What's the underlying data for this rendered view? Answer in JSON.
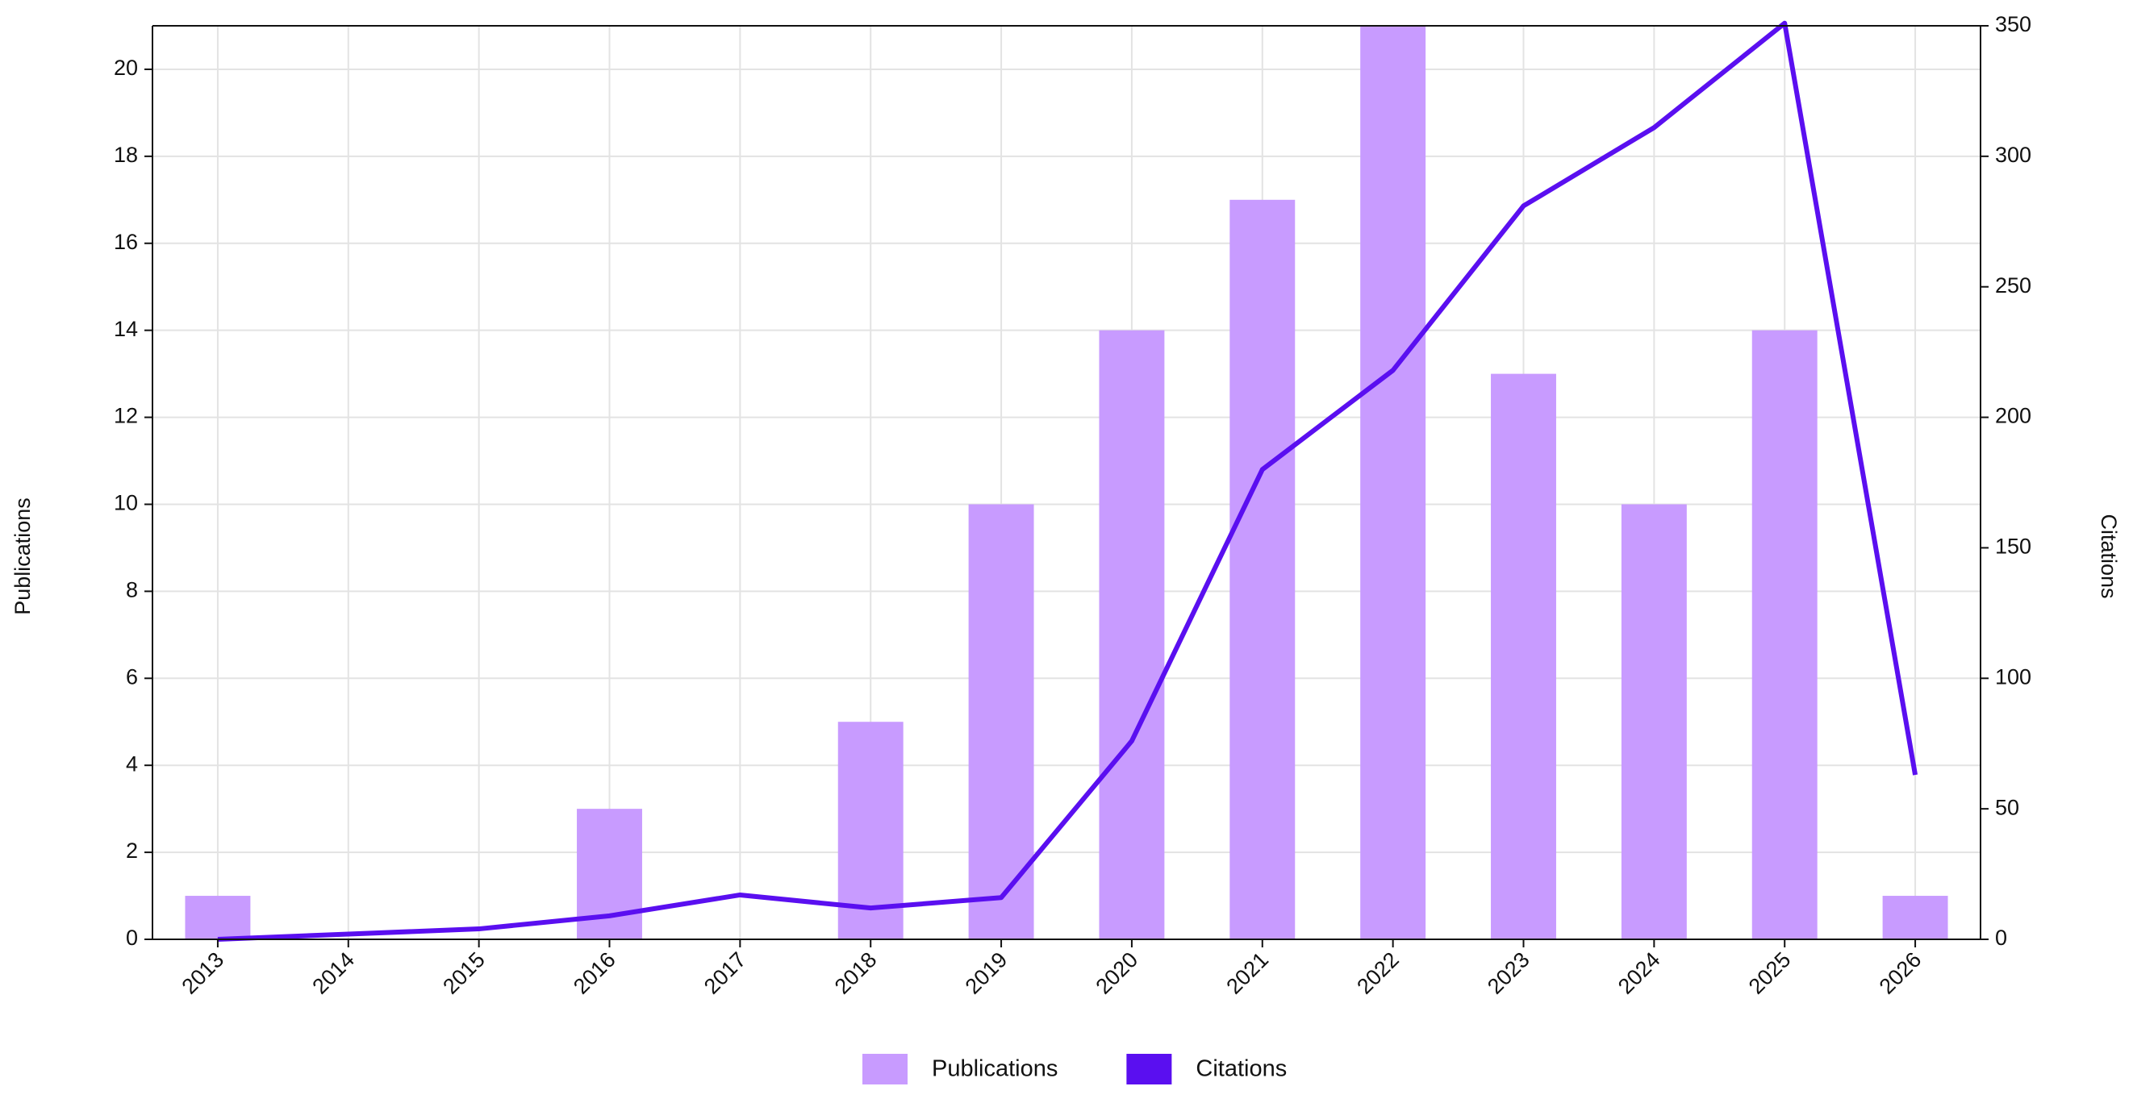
{
  "chart_data": {
    "type": "bar",
    "categories": [
      "2013",
      "2014",
      "2015",
      "2016",
      "2017",
      "2018",
      "2019",
      "2020",
      "2021",
      "2022",
      "2023",
      "2024",
      "2025",
      "2026"
    ],
    "series": [
      {
        "name": "Publications",
        "type": "bar",
        "color": "#c89bff",
        "values": [
          1,
          0,
          0,
          3,
          0,
          5,
          10,
          14,
          17,
          21,
          13,
          10,
          14,
          1
        ]
      },
      {
        "name": "Citations",
        "type": "line",
        "axis": "y2",
        "color": "#5a0ff0",
        "values": [
          0,
          2,
          4,
          9,
          17,
          12,
          16,
          76,
          180,
          218,
          281,
          311,
          351,
          63
        ]
      }
    ],
    "ylabel": "Publications",
    "y2label": "Citations",
    "ylim": [
      0,
      21
    ],
    "yticks": [
      0,
      2,
      4,
      6,
      8,
      10,
      12,
      14,
      16,
      18,
      20
    ],
    "y2lim": [
      0,
      350
    ],
    "y2ticks": [
      0,
      50,
      100,
      150,
      200,
      250,
      300,
      350
    ],
    "grid": true,
    "legend": "bottom"
  }
}
